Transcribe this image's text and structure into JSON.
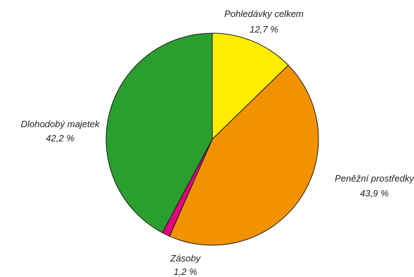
{
  "chart_data": {
    "type": "pie",
    "title": "",
    "start_angle_deg": 0,
    "direction": "clockwise",
    "slices": [
      {
        "label": "Pohledávky celkem",
        "value": 12.7,
        "value_label": "12,7 %",
        "color": "#ffed00"
      },
      {
        "label": "Peněžní prostředky",
        "value": 43.9,
        "value_label": "43,9 %",
        "color": "#f39200"
      },
      {
        "label": "Zásoby",
        "value": 1.2,
        "value_label": "1,2 %",
        "color": "#e6007e"
      },
      {
        "label": "Dlohodobý majetek",
        "value": 42.2,
        "value_label": "42,2 %",
        "color": "#2a9f2f"
      }
    ],
    "edge_color": "#1a1a1a"
  }
}
